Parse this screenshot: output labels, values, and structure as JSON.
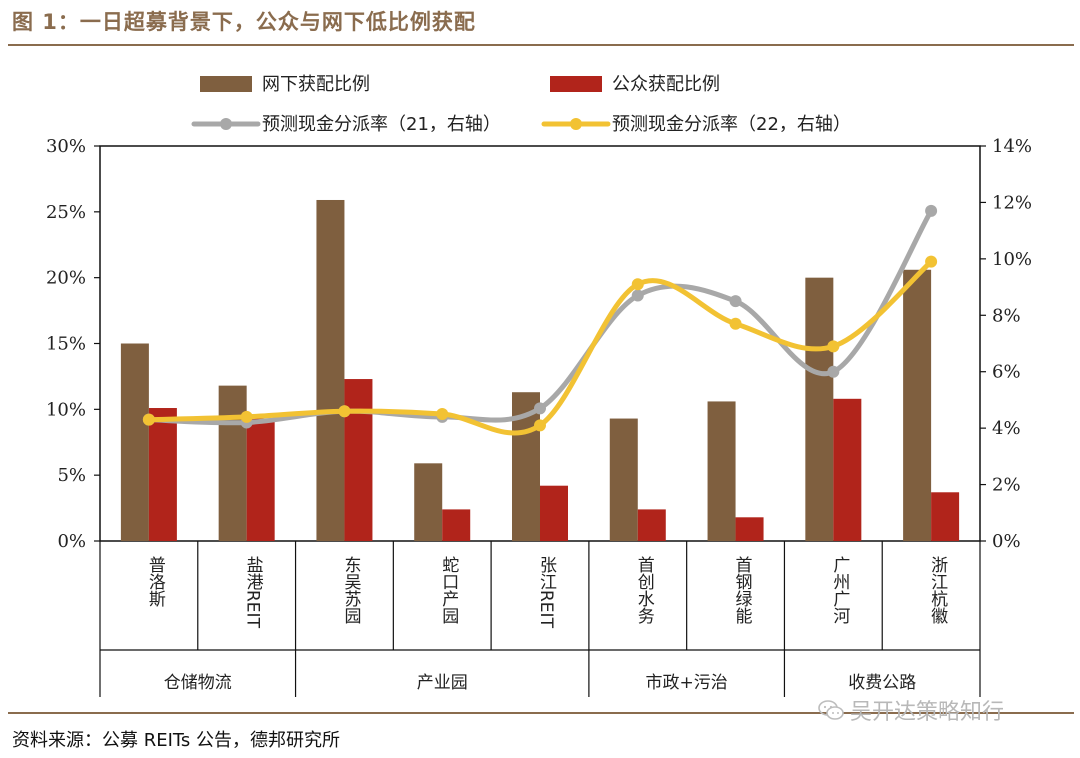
{
  "title": "图 1：一日超募背景下，公众与网下低比例获配",
  "source": "资料来源：公募 REITs 公告，德邦研究所",
  "watermark": "吴开达策略知行",
  "colors": {
    "offline": "#7f5f3f",
    "public": "#b1241b",
    "line21": "#a8a8a8",
    "line22": "#f2c233",
    "accent": "#8a6c4e"
  },
  "chart_data": {
    "type": "bar",
    "categories": [
      "普洛斯",
      "盐港REIT",
      "东吴苏园",
      "蛇口产园",
      "张江REIT",
      "首创水务",
      "首钢绿能",
      "广州广河",
      "浙江杭徽"
    ],
    "groups": [
      {
        "label": "仓储物流",
        "count": 2
      },
      {
        "label": "产业园",
        "count": 3
      },
      {
        "label": "市政+污治",
        "count": 2
      },
      {
        "label": "收费公路",
        "count": 2
      }
    ],
    "series": [
      {
        "name": "网下获配比例",
        "type": "bar",
        "axis": "left",
        "values": [
          15.0,
          11.8,
          25.9,
          5.9,
          11.3,
          9.3,
          10.6,
          20.0,
          20.6
        ]
      },
      {
        "name": "公众获配比例",
        "type": "bar",
        "axis": "left",
        "values": [
          10.1,
          9.3,
          12.3,
          2.4,
          4.2,
          2.4,
          1.8,
          10.8,
          3.7
        ]
      },
      {
        "name": "预测现金分派率（21，右轴）",
        "type": "line",
        "axis": "right",
        "values": [
          4.3,
          4.2,
          4.6,
          4.4,
          4.7,
          8.7,
          8.5,
          6.0,
          11.7
        ]
      },
      {
        "name": "预测现金分派率（22，右轴）",
        "type": "line",
        "axis": "right",
        "values": [
          4.3,
          4.4,
          4.6,
          4.5,
          4.1,
          9.1,
          7.7,
          6.9,
          9.9
        ]
      }
    ],
    "ylim_left": [
      0,
      30
    ],
    "ylim_right": [
      0,
      14
    ],
    "yticks_left": [
      "0%",
      "5%",
      "10%",
      "15%",
      "20%",
      "25%",
      "30%"
    ],
    "yticks_right": [
      "0%",
      "2%",
      "4%",
      "6%",
      "8%",
      "10%",
      "12%",
      "14%"
    ],
    "legend": [
      "网下获配比例",
      "公众获配比例",
      "预测现金分派率（21，右轴）",
      "预测现金分派率（22，右轴）"
    ],
    "legend_position": "top"
  }
}
